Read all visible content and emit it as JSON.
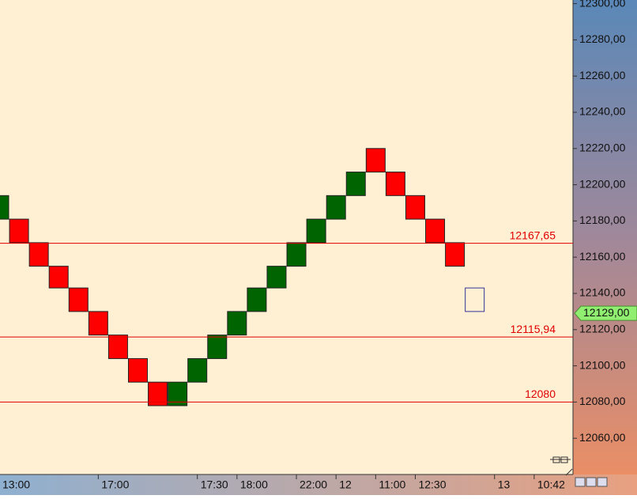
{
  "chart_data": {
    "type": "renko",
    "categories": [
      "13:00",
      null,
      null,
      null,
      null,
      "17:00",
      null,
      null,
      null,
      null,
      "17:30",
      null,
      "18:00",
      null,
      null,
      "22:00",
      null,
      "12",
      null,
      "11:00",
      null,
      "12:30",
      null,
      null,
      null,
      "13",
      null,
      "10:42"
    ],
    "open": [
      12181,
      12181,
      12168,
      12155,
      12143,
      12130,
      12117,
      12104,
      12091,
      12078,
      12091,
      12104,
      12117,
      12130,
      12143,
      12155,
      12168,
      12181,
      12194,
      12220,
      12207,
      12194,
      12181,
      12168,
      12130,
      null,
      null,
      null
    ],
    "close": [
      12194,
      12168,
      12155,
      12143,
      12130,
      12117,
      12104,
      12091,
      12078,
      12091,
      12104,
      12117,
      12130,
      12143,
      12155,
      12168,
      12181,
      12194,
      12207,
      12207,
      12194,
      12181,
      12168,
      12155,
      12143,
      null,
      null,
      null
    ],
    "up_color": "#006400",
    "down_color": "#ff0000",
    "last_brick_hollow": true,
    "ylim": [
      12040,
      12302
    ],
    "yticks": [
      {
        "value": 12060,
        "label": "12060,00"
      },
      {
        "value": 12080,
        "label": "12080,00"
      },
      {
        "value": 12100,
        "label": "12100,00"
      },
      {
        "value": 12120,
        "label": "12120,00"
      },
      {
        "value": 12140,
        "label": "12140,00"
      },
      {
        "value": 12160,
        "label": "12160,00"
      },
      {
        "value": 12180,
        "label": "12180,00"
      },
      {
        "value": 12200,
        "label": "12200,00"
      },
      {
        "value": 12220,
        "label": "12220,00"
      },
      {
        "value": 12240,
        "label": "12240,00"
      },
      {
        "value": 12260,
        "label": "12260,00"
      },
      {
        "value": 12280,
        "label": "12280,00"
      },
      {
        "value": 12300,
        "label": "12300,00"
      }
    ],
    "levels": [
      {
        "value": 12167.65,
        "label": "12167,65"
      },
      {
        "value": 12115.94,
        "label": "12115,94"
      },
      {
        "value": 12080,
        "label": "12080"
      }
    ],
    "level_color": "#e00000",
    "price_tag": {
      "value": 12129,
      "label": "12129,00"
    }
  }
}
